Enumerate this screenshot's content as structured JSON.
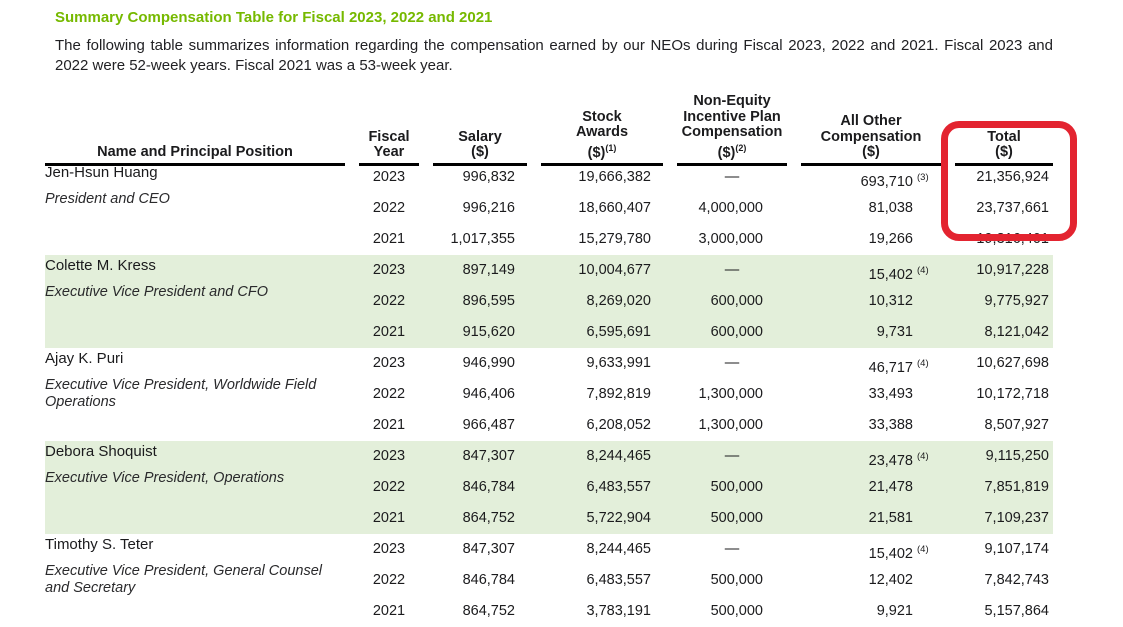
{
  "title": "Summary Compensation Table for Fiscal 2023, 2022 and 2021",
  "intro": "The following table summarizes information regarding the compensation earned by our NEOs during Fiscal 2023, 2022 and 2021.  Fiscal 2023 and 2022 were 52-week years. Fiscal 2021 was a 53-week year.",
  "colors": {
    "accent_green": "#76b900",
    "row_highlight_green": "#e3efda",
    "annotation_red": "#e32430"
  },
  "annotation": {
    "shape": "rounded-rectangle",
    "color": "#e32430"
  },
  "table": {
    "header": {
      "name": "Name and Principal Position",
      "fiscal_year": [
        "Fiscal",
        "Year"
      ],
      "salary": [
        "Salary",
        "($)"
      ],
      "stock_awards": [
        "Stock",
        "Awards",
        "($)"
      ],
      "stock_awards_footnote": "(1)",
      "non_equity": [
        "Non-Equity",
        "Incentive Plan",
        "Compensation",
        "($)"
      ],
      "non_equity_footnote": "(2)",
      "all_other": [
        "All Other",
        "Compensation",
        "($)"
      ],
      "total": [
        "Total",
        "($)"
      ]
    },
    "executives": [
      {
        "name": "Jen-Hsun Huang",
        "position": "President and CEO",
        "rows": [
          {
            "year": "2023",
            "salary": "996,832",
            "stock": "19,666,382",
            "non_equity": "—",
            "all_other": "693,710",
            "all_other_footnote": "(3)",
            "total": "21,356,924"
          },
          {
            "year": "2022",
            "salary": "996,216",
            "stock": "18,660,407",
            "non_equity": "4,000,000",
            "all_other": "81,038",
            "all_other_footnote": "",
            "total": "23,737,661"
          },
          {
            "year": "2021",
            "salary": "1,017,355",
            "stock": "15,279,780",
            "non_equity": "3,000,000",
            "all_other": "19,266",
            "all_other_footnote": "",
            "total": "19,316,401"
          }
        ]
      },
      {
        "name": "Colette M. Kress",
        "position": "Executive Vice President and CFO",
        "rows": [
          {
            "year": "2023",
            "salary": "897,149",
            "stock": "10,004,677",
            "non_equity": "—",
            "all_other": "15,402",
            "all_other_footnote": "(4)",
            "total": "10,917,228"
          },
          {
            "year": "2022",
            "salary": "896,595",
            "stock": "8,269,020",
            "non_equity": "600,000",
            "all_other": "10,312",
            "all_other_footnote": "",
            "total": "9,775,927"
          },
          {
            "year": "2021",
            "salary": "915,620",
            "stock": "6,595,691",
            "non_equity": "600,000",
            "all_other": "9,731",
            "all_other_footnote": "",
            "total": "8,121,042"
          }
        ]
      },
      {
        "name": "Ajay K. Puri",
        "position": "Executive Vice President, Worldwide Field Operations",
        "rows": [
          {
            "year": "2023",
            "salary": "946,990",
            "stock": "9,633,991",
            "non_equity": "—",
            "all_other": "46,717",
            "all_other_footnote": "(4)",
            "total": "10,627,698"
          },
          {
            "year": "2022",
            "salary": "946,406",
            "stock": "7,892,819",
            "non_equity": "1,300,000",
            "all_other": "33,493",
            "all_other_footnote": "",
            "total": "10,172,718"
          },
          {
            "year": "2021",
            "salary": "966,487",
            "stock": "6,208,052",
            "non_equity": "1,300,000",
            "all_other": "33,388",
            "all_other_footnote": "",
            "total": "8,507,927"
          }
        ]
      },
      {
        "name": "Debora Shoquist",
        "position": "Executive Vice President, Operations",
        "rows": [
          {
            "year": "2023",
            "salary": "847,307",
            "stock": "8,244,465",
            "non_equity": "—",
            "all_other": "23,478",
            "all_other_footnote": "(4)",
            "total": "9,115,250"
          },
          {
            "year": "2022",
            "salary": "846,784",
            "stock": "6,483,557",
            "non_equity": "500,000",
            "all_other": "21,478",
            "all_other_footnote": "",
            "total": "7,851,819"
          },
          {
            "year": "2021",
            "salary": "864,752",
            "stock": "5,722,904",
            "non_equity": "500,000",
            "all_other": "21,581",
            "all_other_footnote": "",
            "total": "7,109,237"
          }
        ]
      },
      {
        "name": "Timothy S. Teter",
        "position": "Executive Vice President, General Counsel and Secretary",
        "rows": [
          {
            "year": "2023",
            "salary": "847,307",
            "stock": "8,244,465",
            "non_equity": "—",
            "all_other": "15,402",
            "all_other_footnote": "(4)",
            "total": "9,107,174"
          },
          {
            "year": "2022",
            "salary": "846,784",
            "stock": "6,483,557",
            "non_equity": "500,000",
            "all_other": "12,402",
            "all_other_footnote": "",
            "total": "7,842,743"
          },
          {
            "year": "2021",
            "salary": "864,752",
            "stock": "3,783,191",
            "non_equity": "500,000",
            "all_other": "9,921",
            "all_other_footnote": "",
            "total": "5,157,864"
          }
        ]
      }
    ]
  }
}
